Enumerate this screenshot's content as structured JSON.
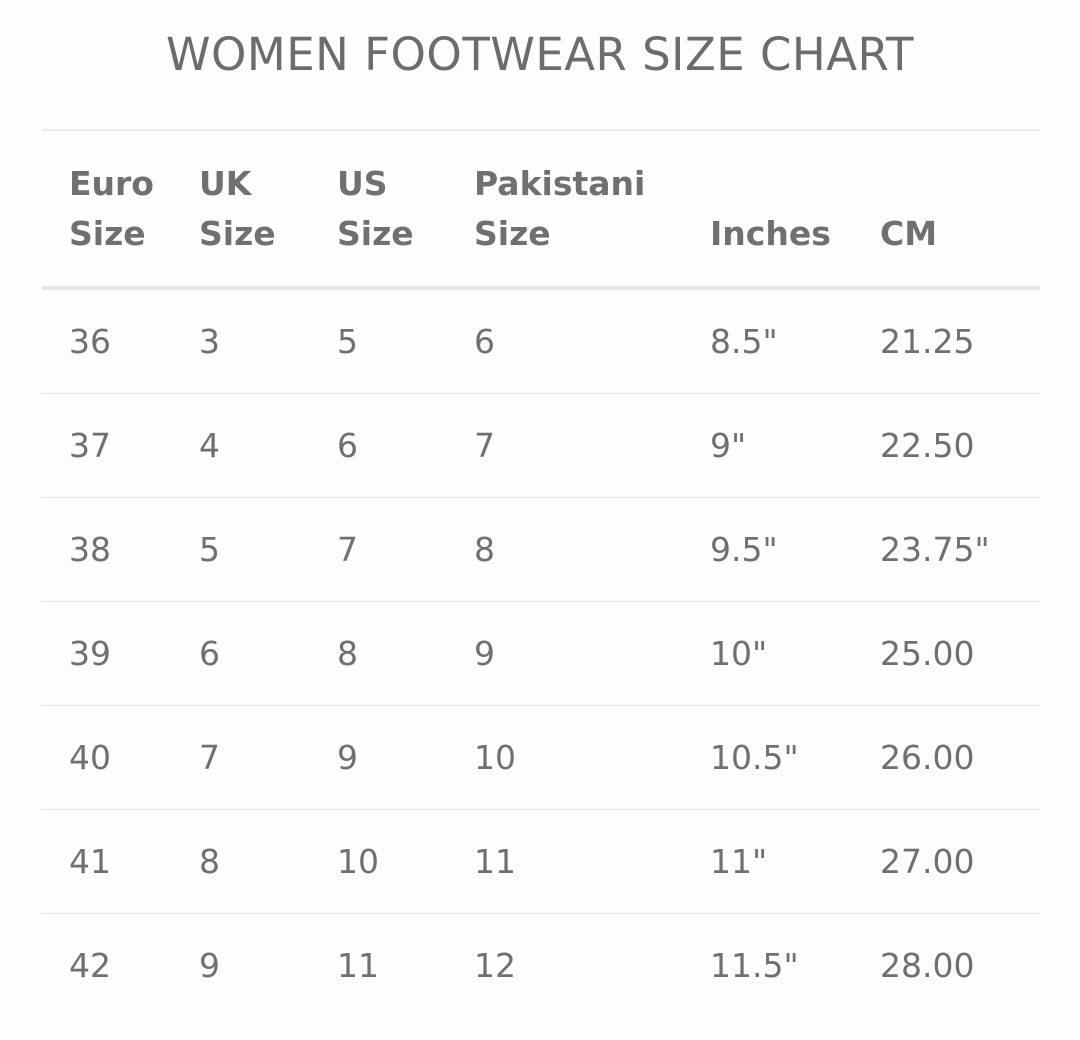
{
  "title": "WOMEN FOOTWEAR SIZE CHART",
  "table": {
    "headers": [
      {
        "line1": "Euro",
        "line2": "Size"
      },
      {
        "line1": "UK",
        "line2": "Size"
      },
      {
        "line1": "US",
        "line2": "Size"
      },
      {
        "line1": "Pakistani",
        "line2": "Size"
      },
      {
        "line1": "",
        "line2": "Inches"
      },
      {
        "line1": "",
        "line2": "CM"
      }
    ],
    "rows": [
      [
        "36",
        "3",
        "5",
        "6",
        "8.5\"",
        "21.25"
      ],
      [
        "37",
        "4",
        "6",
        "7",
        "9\"",
        "22.50"
      ],
      [
        "38",
        "5",
        "7",
        "8",
        "9.5\"",
        "23.75\""
      ],
      [
        "39",
        "6",
        "8",
        "9",
        "10\"",
        "25.00"
      ],
      [
        "40",
        "7",
        "9",
        "10",
        "10.5\"",
        "26.00"
      ],
      [
        "41",
        "8",
        "10",
        "11",
        "11\"",
        "27.00"
      ],
      [
        "42",
        "9",
        "11",
        "12",
        "11.5\"",
        "28.00"
      ]
    ]
  },
  "colors": {
    "text": "#6f6f6f",
    "divider": "#e3e3e3",
    "background": "#fdfdfd"
  }
}
